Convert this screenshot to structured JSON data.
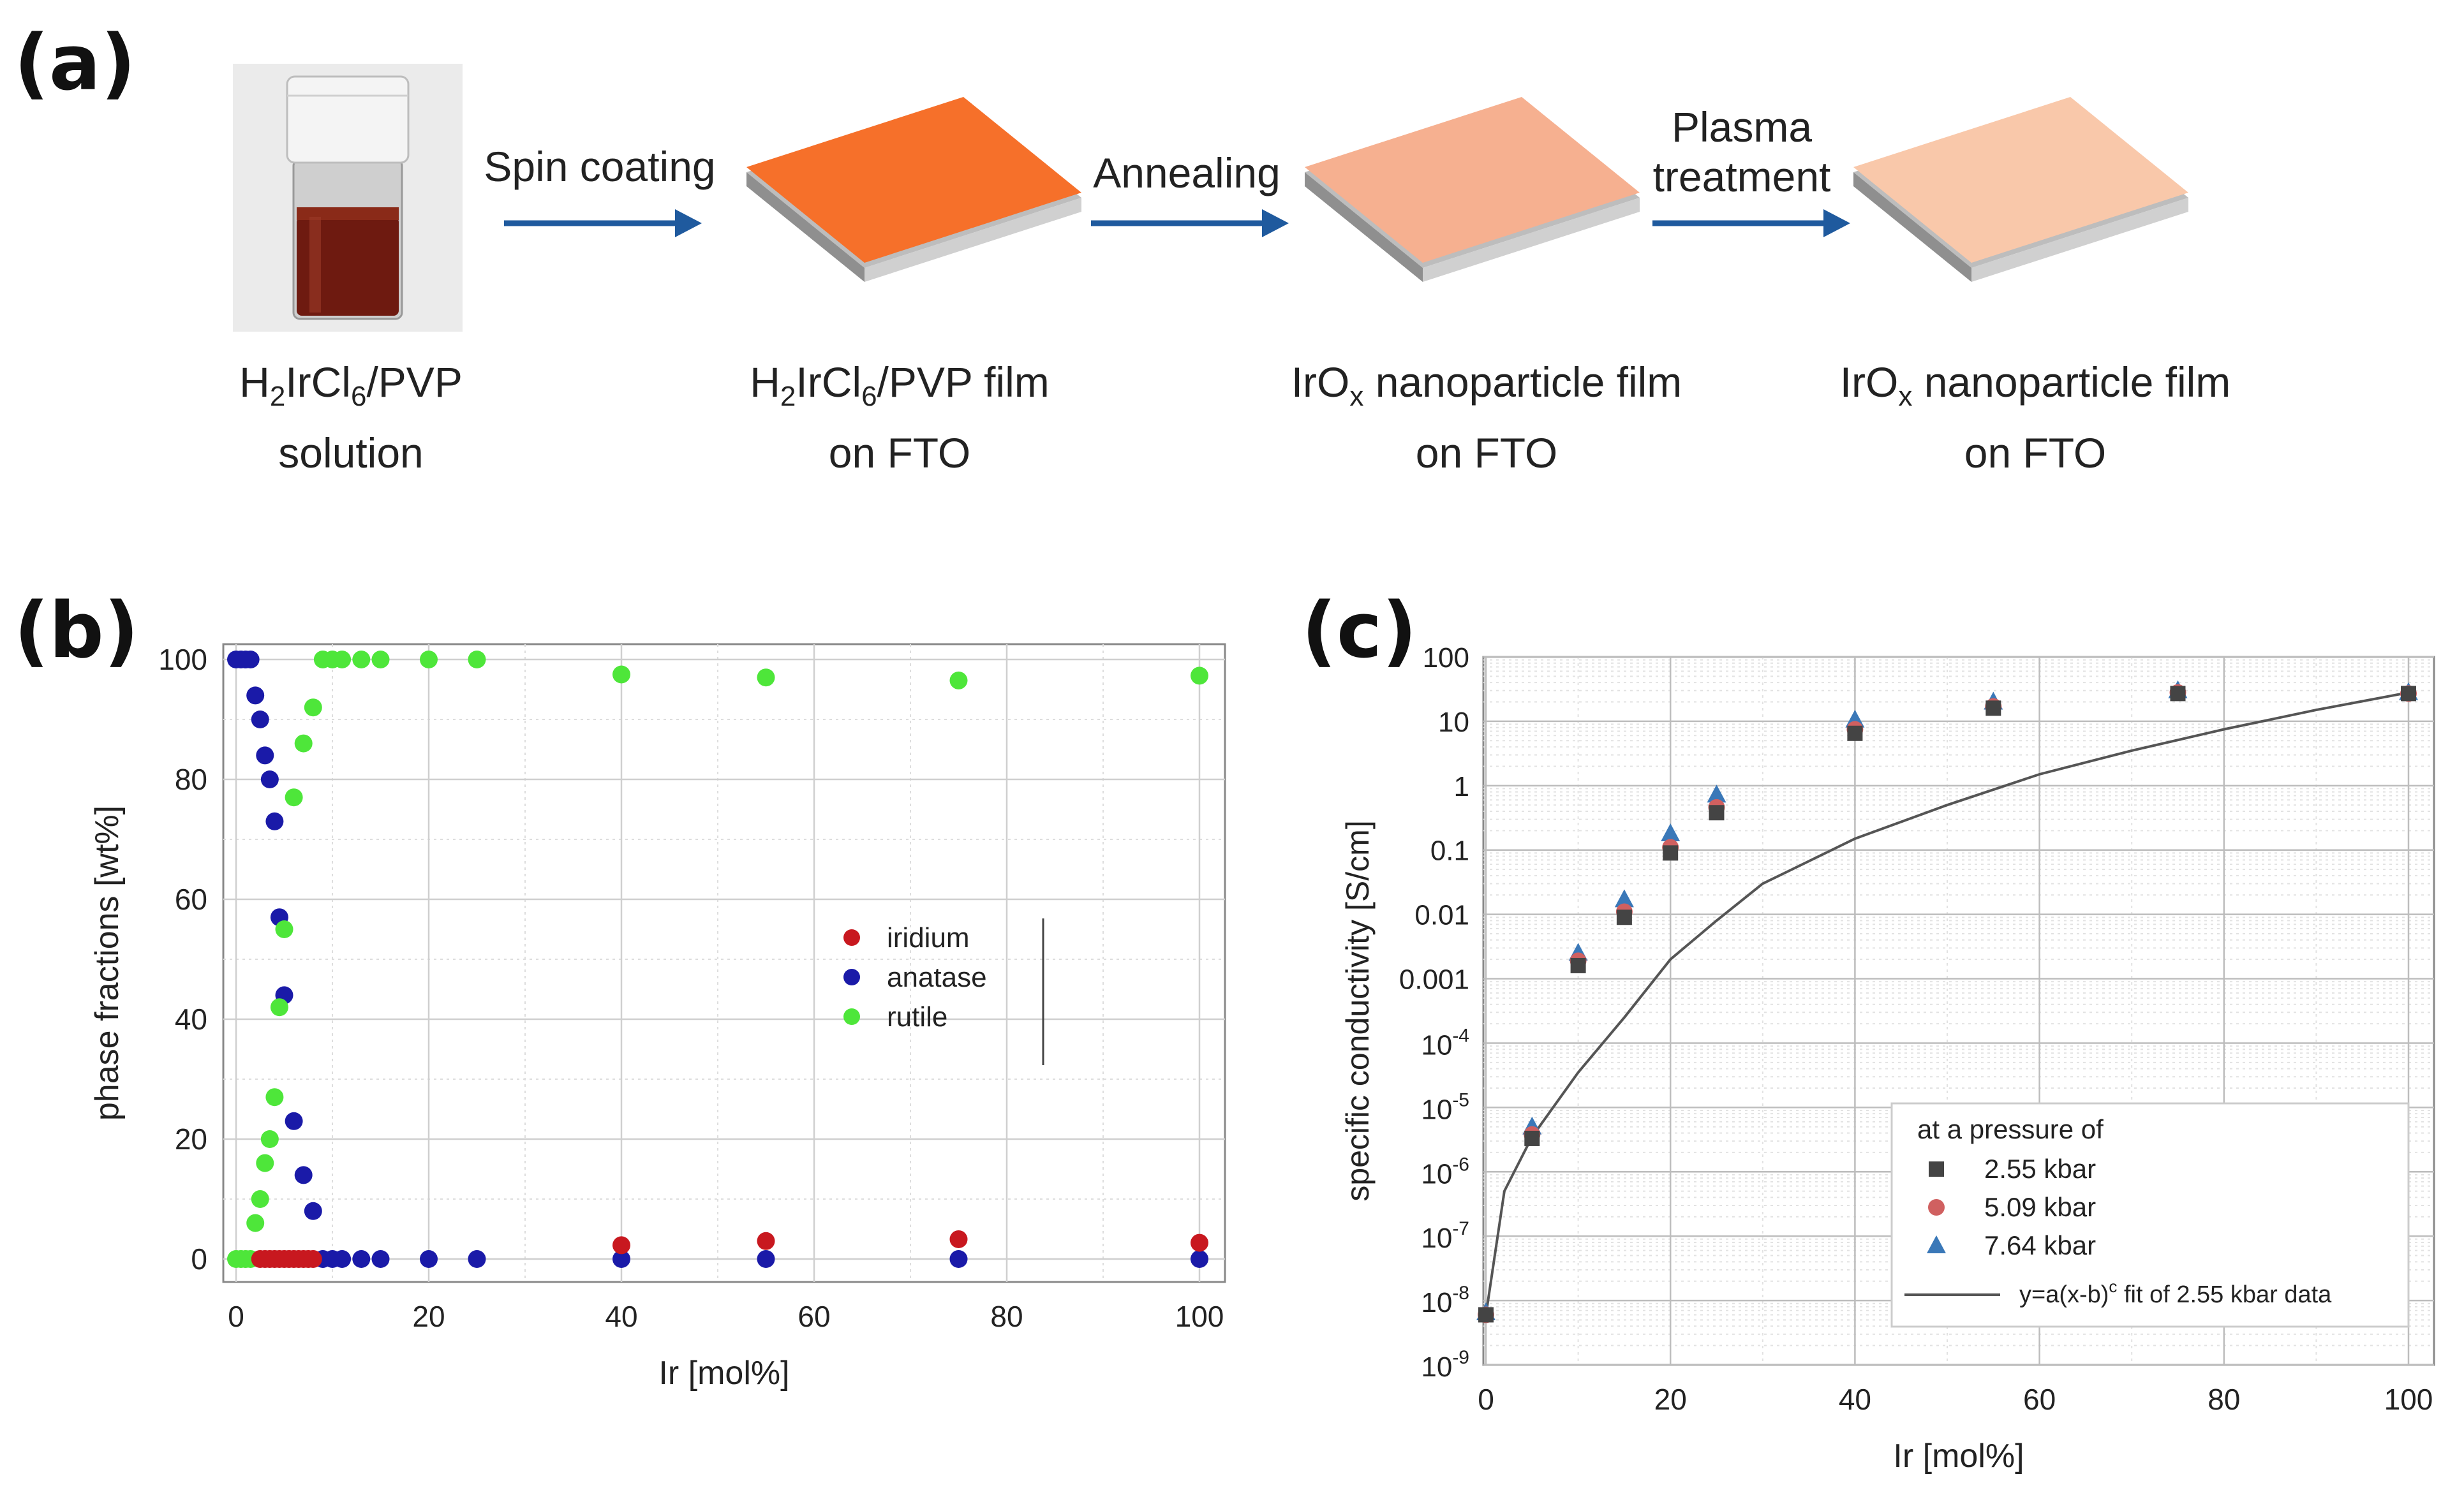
{
  "panel_a": {
    "label": "(a)",
    "steps": [
      {
        "line1_pre": "H",
        "line1_sub": "2",
        "line1_mid": "IrCl",
        "line1_sub2": "6",
        "line1_post": "/PVP",
        "line2": "solution"
      },
      {
        "line1_pre": "H",
        "line1_sub": "2",
        "line1_mid": "IrCl",
        "line1_sub2": "6",
        "line1_post": "/PVP film",
        "line2": "on FTO"
      },
      {
        "line1_pre": "IrO",
        "line1_sub": "x",
        "line1_post": " nanoparticle film",
        "line2": "on FTO"
      },
      {
        "line1_pre": "IrO",
        "line1_sub": "x",
        "line1_post": " nanoparticle film",
        "line2": "on FTO"
      }
    ],
    "arrows": [
      {
        "label": "Spin coating"
      },
      {
        "label": "Annealing"
      },
      {
        "label_line1": "Plasma",
        "label_line2": "treatment"
      }
    ],
    "colors": {
      "film1": "#f6702a",
      "film2": "#f6b090",
      "film3": "#f9c8aa",
      "arrow": "#1f5a9e",
      "liquid": "#6e1a10"
    }
  },
  "chart_data": [
    {
      "panel": "(b)",
      "type": "scatter",
      "xlabel": "Ir [mol%]",
      "ylabel": "phase fractions [wt%]",
      "xlim": [
        0,
        100
      ],
      "ylim": [
        0,
        100
      ],
      "xticks": [
        0,
        20,
        40,
        60,
        80,
        100
      ],
      "yticks": [
        0,
        20,
        40,
        60,
        80,
        100
      ],
      "grid": true,
      "legend_position": "center-right",
      "series": [
        {
          "name": "iridium",
          "color": "#c8181f",
          "points": [
            [
              2.5,
              0
            ],
            [
              3,
              0
            ],
            [
              3.5,
              0
            ],
            [
              4,
              0
            ],
            [
              4.5,
              0
            ],
            [
              5,
              0
            ],
            [
              5.5,
              0
            ],
            [
              6,
              0
            ],
            [
              6.5,
              0
            ],
            [
              7,
              0
            ],
            [
              7.5,
              0
            ],
            [
              8,
              0
            ],
            [
              40,
              2.3
            ],
            [
              55,
              3
            ],
            [
              75,
              3.3
            ],
            [
              100,
              2.7
            ]
          ]
        },
        {
          "name": "anatase",
          "color": "#1a1aa8",
          "points": [
            [
              0,
              100
            ],
            [
              0.5,
              100
            ],
            [
              1,
              100
            ],
            [
              1.5,
              100
            ],
            [
              2,
              94
            ],
            [
              2.5,
              90
            ],
            [
              3,
              84
            ],
            [
              3.5,
              80
            ],
            [
              4,
              73
            ],
            [
              4.5,
              57
            ],
            [
              5,
              44
            ],
            [
              6,
              23
            ],
            [
              7,
              14
            ],
            [
              8,
              8
            ],
            [
              9,
              0
            ],
            [
              10,
              0
            ],
            [
              11,
              0
            ],
            [
              13,
              0
            ],
            [
              15,
              0
            ],
            [
              20,
              0
            ],
            [
              25,
              0
            ],
            [
              40,
              0
            ],
            [
              55,
              0
            ],
            [
              75,
              0
            ],
            [
              100,
              0
            ]
          ]
        },
        {
          "name": "rutile",
          "color": "#4ee63a",
          "points": [
            [
              0,
              0
            ],
            [
              0.5,
              0
            ],
            [
              1,
              0
            ],
            [
              1.5,
              0
            ],
            [
              2,
              6
            ],
            [
              2.5,
              10
            ],
            [
              3,
              16
            ],
            [
              3.5,
              20
            ],
            [
              4,
              27
            ],
            [
              4.5,
              42
            ],
            [
              5,
              55
            ],
            [
              6,
              77
            ],
            [
              7,
              86
            ],
            [
              8,
              92
            ],
            [
              9,
              100
            ],
            [
              10,
              100
            ],
            [
              11,
              100
            ],
            [
              13,
              100
            ],
            [
              15,
              100
            ],
            [
              20,
              100
            ],
            [
              25,
              100
            ],
            [
              40,
              97.5
            ],
            [
              55,
              97
            ],
            [
              75,
              96.5
            ],
            [
              100,
              97.3
            ]
          ]
        }
      ]
    },
    {
      "panel": "(c)",
      "type": "scatter",
      "xlabel": "Ir [mol%]",
      "ylabel": "specific conductivity [S/cm]",
      "yscale": "log",
      "xlim": [
        0,
        100
      ],
      "ylim": [
        1e-09,
        100
      ],
      "xticks": [
        0,
        20,
        40,
        60,
        80,
        100
      ],
      "ytick_labels": [
        {
          "base": "10",
          "exp": "-9"
        },
        {
          "base": "10",
          "exp": "-8"
        },
        {
          "base": "10",
          "exp": "-7"
        },
        {
          "base": "10",
          "exp": "-6"
        },
        {
          "base": "10",
          "exp": "-5"
        },
        {
          "base": "10",
          "exp": "-4"
        },
        {
          "text": "0.001"
        },
        {
          "text": "0.01"
        },
        {
          "text": "0.1"
        },
        {
          "text": "1"
        },
        {
          "text": "10"
        },
        {
          "text": "100"
        }
      ],
      "grid": true,
      "legend_title": "at a pressure of",
      "legend_position": "bottom-right",
      "series": [
        {
          "name": "2.55 kbar",
          "marker": "square",
          "color": "#444444",
          "points": [
            [
              0,
              6e-09
            ],
            [
              5,
              3.3e-06
            ],
            [
              10,
              0.0016
            ],
            [
              15,
              0.009
            ],
            [
              20,
              0.09
            ],
            [
              25,
              0.38
            ],
            [
              40,
              6.5
            ],
            [
              55,
              16
            ],
            [
              75,
              27
            ],
            [
              100,
              27
            ]
          ]
        },
        {
          "name": "5.09 kbar",
          "marker": "circle",
          "color": "#d06060",
          "points": [
            [
              0,
              6e-09
            ],
            [
              5,
              3.8e-06
            ],
            [
              10,
              0.0019
            ],
            [
              15,
              0.011
            ],
            [
              20,
              0.11
            ],
            [
              25,
              0.46
            ],
            [
              40,
              7.5
            ],
            [
              55,
              17
            ],
            [
              75,
              28
            ],
            [
              100,
              27
            ]
          ]
        },
        {
          "name": "7.64 kbar",
          "marker": "triangle",
          "color": "#3a78b8",
          "points": [
            [
              0,
              6.5e-09
            ],
            [
              5,
              5e-06
            ],
            [
              10,
              0.0025
            ],
            [
              15,
              0.017
            ],
            [
              20,
              0.18
            ],
            [
              25,
              0.72
            ],
            [
              40,
              10.5
            ],
            [
              55,
              20
            ],
            [
              75,
              30
            ],
            [
              100,
              28
            ]
          ]
        }
      ],
      "fit": {
        "label": "y=a(x-b)",
        "label_sup": "c",
        "label_tail": " fit of 2.55 kbar data",
        "color": "#555555",
        "points": [
          [
            0,
            6e-09
          ],
          [
            2,
            5e-07
          ],
          [
            5,
            3.5e-06
          ],
          [
            10,
            3.5e-05
          ],
          [
            15,
            0.00025
          ],
          [
            20,
            0.002
          ],
          [
            25,
            0.008
          ],
          [
            30,
            0.03
          ],
          [
            40,
            0.15
          ],
          [
            50,
            0.5
          ],
          [
            60,
            1.5
          ],
          [
            70,
            3.5
          ],
          [
            80,
            7.5
          ],
          [
            90,
            15
          ],
          [
            100,
            28
          ]
        ]
      }
    }
  ]
}
